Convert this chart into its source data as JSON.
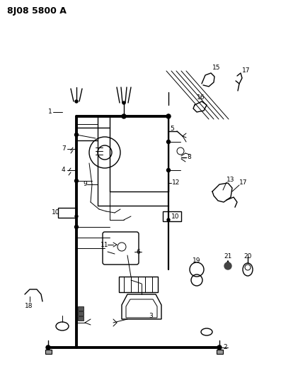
{
  "title": "8J08 5800 A",
  "bg_color": "#ffffff",
  "line_color": "#000000",
  "fig_width": 3.97,
  "fig_height": 5.33,
  "dpi": 100,
  "xlim": [
    0,
    397
  ],
  "ylim": [
    0,
    533
  ]
}
